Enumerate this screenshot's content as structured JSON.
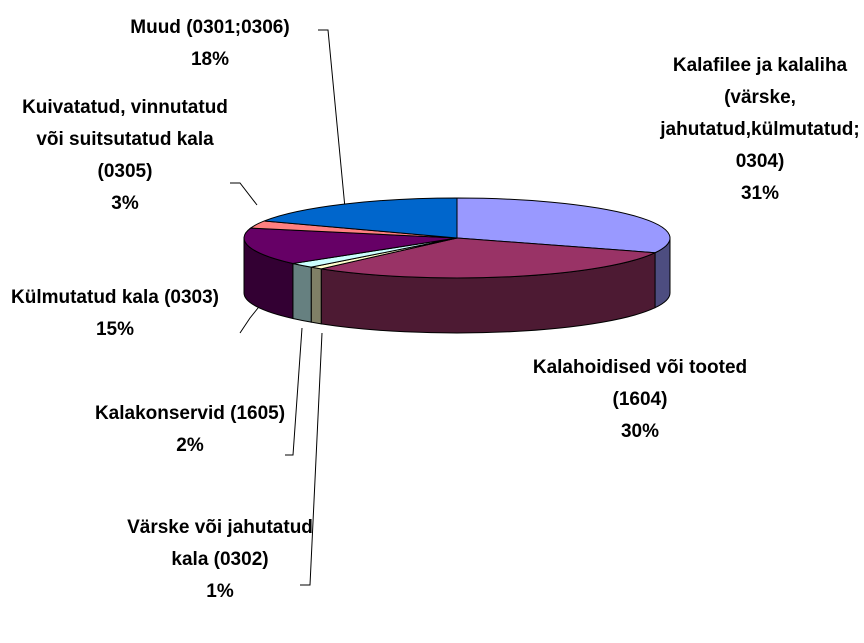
{
  "chart_data": {
    "type": "pie3d",
    "categories": [
      "Kalafilee ja kalaliha (värske, jahutatud,külmutatud; 0304)",
      "Kalahoidised või tooted (1604)",
      "Värske või jahutatud kala (0302)",
      "Kalakonservid (1605)",
      "Külmutatud kala (0303)",
      "Kuivatatud, vinnutatud või suitsutatud kala (0305)",
      "Muud (0301;0306)"
    ],
    "values": [
      31,
      30,
      1,
      2,
      15,
      3,
      18
    ],
    "value_labels": [
      "31%",
      "30%",
      "1%",
      "2%",
      "15%",
      "3%",
      "18%"
    ],
    "colors": [
      "#9999ff",
      "#993366",
      "#ffffcc",
      "#ccffff",
      "#660066",
      "#ff8080",
      "#0066cc"
    ]
  }
}
